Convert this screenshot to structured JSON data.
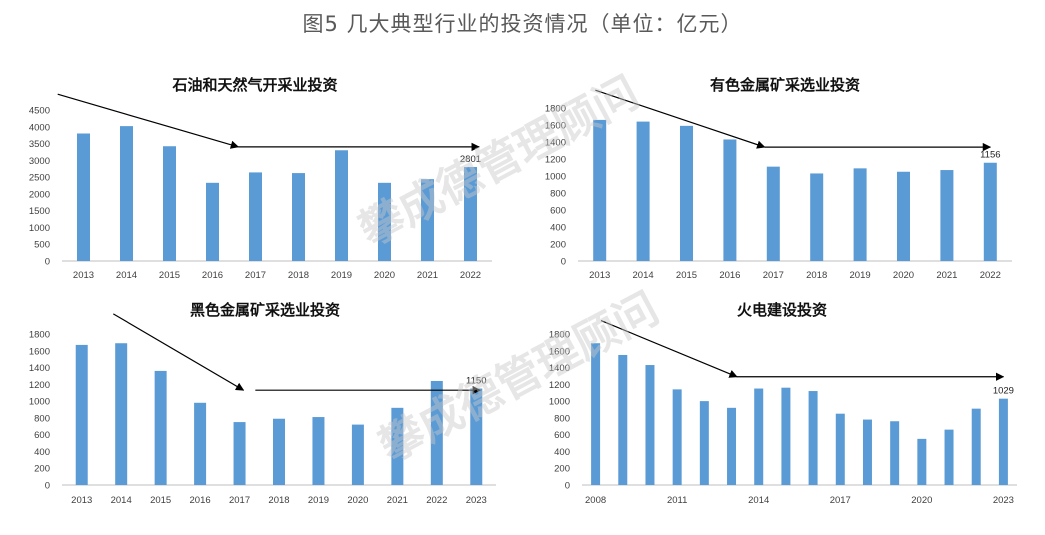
{
  "figure_title": "图5  几大典型行业的投资情况（单位：亿元）",
  "watermark": "攀成德管理顾问",
  "colors": {
    "bar": "#5B9BD5",
    "axis": "#BFBFBF",
    "arrow": "#000000",
    "title": "#595959"
  },
  "chart_data": [
    {
      "type": "bar",
      "title": "石油和天然气开采业投资",
      "categories": [
        "2013",
        "2014",
        "2015",
        "2016",
        "2017",
        "2018",
        "2019",
        "2020",
        "2021",
        "2022"
      ],
      "values": [
        3800,
        4020,
        3420,
        2330,
        2640,
        2620,
        3300,
        2330,
        2440,
        2801
      ],
      "ylim": [
        0,
        4500
      ],
      "yticks": [
        0,
        500,
        1000,
        1500,
        2000,
        2500,
        3000,
        3500,
        4000,
        4500
      ],
      "xlabels": [
        "2013",
        "2014",
        "2015",
        "2016",
        "2017",
        "2018",
        "2019",
        "2020",
        "2021",
        "2022"
      ],
      "data_labels": [
        {
          "index": 9,
          "text": "2801"
        }
      ],
      "trend_arrows": [
        {
          "kind": "diagonal",
          "from": [
            -0.6,
            4970
          ],
          "to": [
            3.6,
            3400
          ]
        },
        {
          "kind": "horizontal",
          "from": [
            3.6,
            3400
          ],
          "to": [
            9.2,
            3400
          ]
        }
      ]
    },
    {
      "type": "bar",
      "title": "有色金属矿采选业投资",
      "categories": [
        "2013",
        "2014",
        "2015",
        "2016",
        "2017",
        "2018",
        "2019",
        "2020",
        "2021",
        "2022"
      ],
      "values": [
        1660,
        1640,
        1590,
        1430,
        1110,
        1030,
        1090,
        1050,
        1070,
        1156
      ],
      "ylim": [
        0,
        1800
      ],
      "yticks": [
        0,
        200,
        400,
        600,
        800,
        1000,
        1200,
        1400,
        1600,
        1800
      ],
      "xlabels": [
        "2013",
        "2014",
        "2015",
        "2016",
        "2017",
        "2018",
        "2019",
        "2020",
        "2021",
        "2022"
      ],
      "data_labels": [
        {
          "index": 9,
          "text": "1156"
        }
      ],
      "trend_arrows": [
        {
          "kind": "diagonal",
          "from": [
            -0.1,
            2010
          ],
          "to": [
            3.8,
            1340
          ]
        },
        {
          "kind": "horizontal",
          "from": [
            3.8,
            1340
          ],
          "to": [
            9.0,
            1340
          ]
        }
      ]
    },
    {
      "type": "bar",
      "title": "黑色金属矿采选业投资",
      "categories": [
        "2013",
        "2014",
        "2015",
        "2016",
        "2017",
        "2018",
        "2019",
        "2020",
        "2021",
        "2022",
        "2023"
      ],
      "values": [
        1670,
        1690,
        1360,
        980,
        750,
        790,
        810,
        720,
        920,
        1240,
        1150
      ],
      "ylim": [
        0,
        1800
      ],
      "yticks": [
        0,
        200,
        400,
        600,
        800,
        1000,
        1200,
        1400,
        1600,
        1800
      ],
      "xlabels": [
        "2013",
        "2014",
        "2015",
        "2016",
        "2017",
        "2018",
        "2019",
        "2020",
        "2021",
        "2022",
        "2023"
      ],
      "data_labels": [
        {
          "index": 10,
          "text": "1150"
        }
      ],
      "trend_arrows": [
        {
          "kind": "diagonal",
          "from": [
            0.8,
            2040
          ],
          "to": [
            4.1,
            1130
          ]
        },
        {
          "kind": "horizontal",
          "from": [
            4.4,
            1130
          ],
          "to": [
            10.1,
            1130
          ]
        }
      ]
    },
    {
      "type": "bar",
      "title": "火电建设投资",
      "categories": [
        "2008",
        "2009",
        "2010",
        "2011",
        "2012",
        "2013",
        "2014",
        "2015",
        "2016",
        "2017",
        "2018",
        "2019",
        "2020",
        "2021",
        "2022",
        "2023"
      ],
      "values": [
        1690,
        1550,
        1430,
        1140,
        1000,
        920,
        1150,
        1160,
        1120,
        850,
        780,
        760,
        550,
        660,
        910,
        1029
      ],
      "ylim": [
        0,
        1800
      ],
      "yticks": [
        0,
        200,
        400,
        600,
        800,
        1000,
        1200,
        1400,
        1600,
        1800
      ],
      "xlabels": [
        "2008",
        "",
        "",
        "2011",
        "",
        "",
        "2014",
        "",
        "",
        "2017",
        "",
        "",
        "2020",
        "",
        "",
        "2023"
      ],
      "data_labels": [
        {
          "index": 15,
          "text": "1029"
        }
      ],
      "trend_arrows": [
        {
          "kind": "diagonal",
          "from": [
            0.2,
            1960
          ],
          "to": [
            5.2,
            1290
          ]
        },
        {
          "kind": "horizontal",
          "from": [
            5.2,
            1290
          ],
          "to": [
            15.0,
            1290
          ]
        }
      ]
    }
  ]
}
